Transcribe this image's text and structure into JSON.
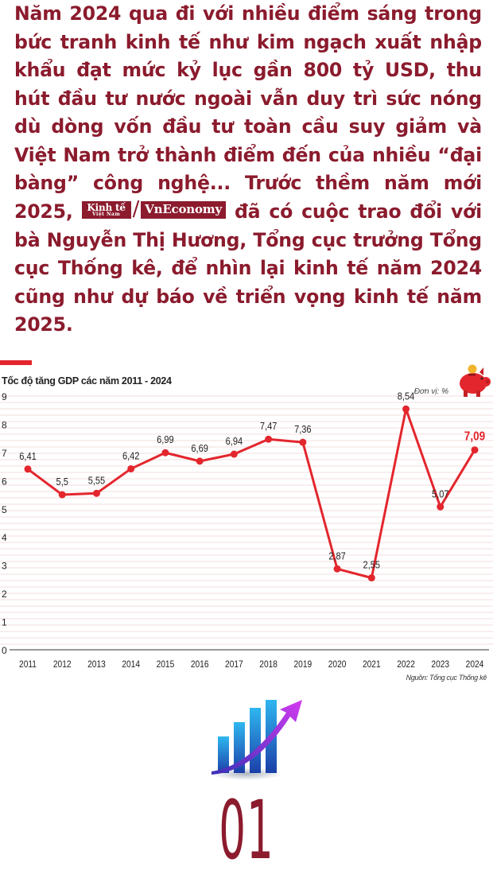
{
  "intro": {
    "part1": "Năm 2024 qua đi với nhiều điểm sáng trong bức tranh kinh tế như kim ngạch xuất nhập khẩu đạt mức kỷ lục gần 800 tỷ USD, thu hút đầu tư nước ngoài vẫn duy trì sức nóng dù dòng vốn đầu tư toàn cầu suy giảm và Việt Nam trở thành điểm đến của nhiều “đại bàng” công nghệ... Trước thềm năm mới 2025,",
    "part2": "đã có cuộc trao đổi với bà Nguyễn Thị Hương, Tổng cục trưởng Tổng cục Thống kê, để nhìn lại kinh tế năm 2024 cũng như dự báo về triển vọng kinh tế năm 2025.",
    "logo_kt_line1": "Kinh tế",
    "logo_kt_line2": "Việt Nam",
    "logo_sep": "/",
    "logo_vne": "VnEconomy"
  },
  "chart_data": {
    "type": "line",
    "title": "Tốc độ tăng GDP các năm 2011 - 2024",
    "unit": "Đơn vị: %",
    "source": "Nguồn: Tổng cục Thống kê",
    "x": [
      "2011",
      "2012",
      "2013",
      "2014",
      "2015",
      "2016",
      "2017",
      "2018",
      "2019",
      "2020",
      "2021",
      "2022",
      "2023",
      "2024"
    ],
    "values": [
      6.41,
      5.5,
      5.55,
      6.42,
      6.99,
      6.69,
      6.94,
      7.47,
      7.36,
      2.87,
      2.55,
      8.54,
      5.07,
      7.09
    ],
    "labels": [
      "6,41",
      "5,5",
      "5,55",
      "6,42",
      "6,99",
      "6,69",
      "6,94",
      "7,47",
      "7,36",
      "2,87",
      "2,55",
      "8,54",
      "5,07",
      "7,09"
    ],
    "yticks": [
      "0",
      "1",
      "2",
      "3",
      "4",
      "5",
      "6",
      "7",
      "8",
      "9"
    ],
    "ylim": [
      0,
      9
    ],
    "highlight_index": 13,
    "colors": {
      "line": "#e3262d",
      "highlight_label": "#e3262d",
      "text": "#222222",
      "grid": "#f3dcdc"
    },
    "xlabel": "",
    "ylabel": ""
  },
  "section": {
    "number": "01"
  },
  "icons": {
    "chart_title_mark": "red-bar-icon",
    "piggy": "piggy-bank-icon",
    "growth": "growth-chart-icon"
  }
}
